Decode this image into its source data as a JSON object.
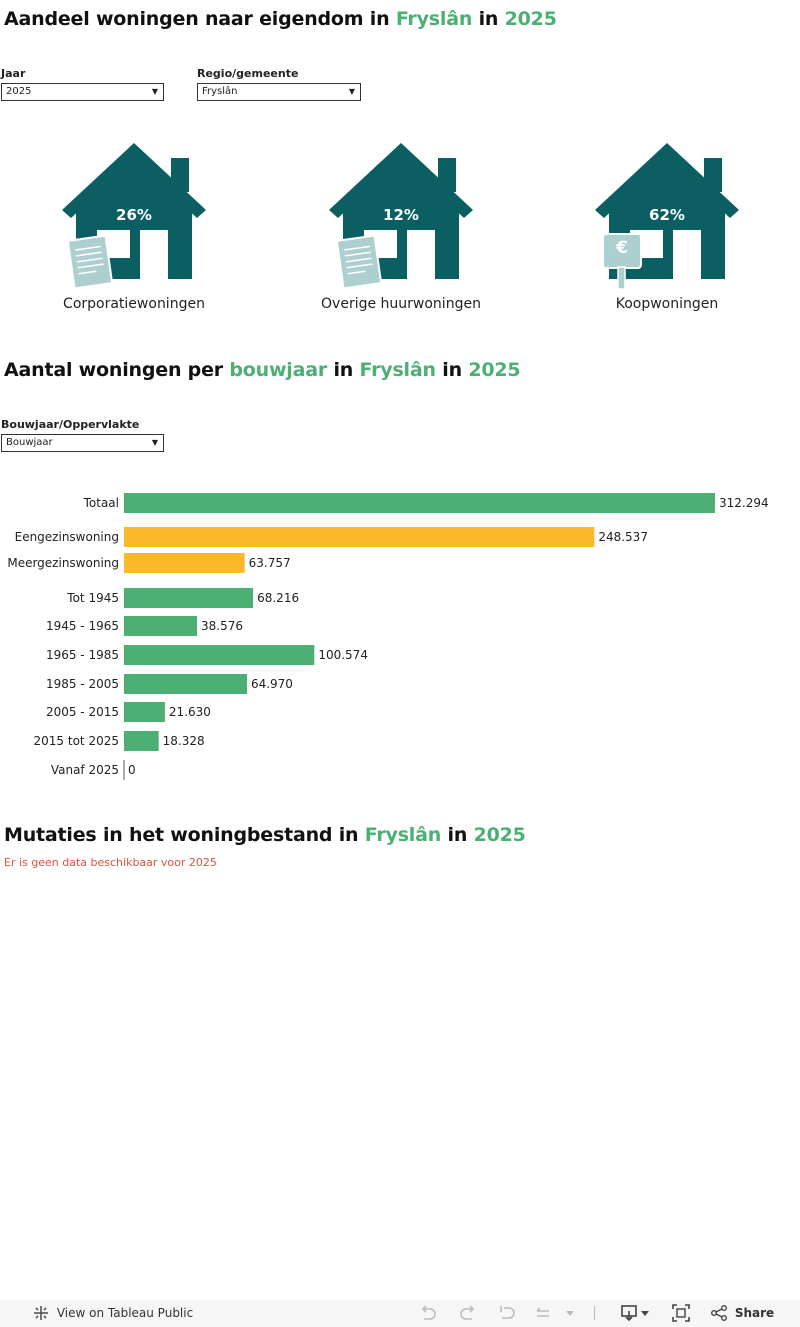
{
  "section1": {
    "title_prefix": "Aandeel woningen naar eigendom in",
    "title_region": "Fryslân",
    "title_in": "in",
    "title_year": "2025",
    "filter_year_label": "Jaar",
    "filter_year_value": "2025",
    "filter_region_label": "Regio/gemeente",
    "filter_region_value": "Fryslân",
    "houses": [
      {
        "pct": "26%",
        "label": "Corporatiewoningen",
        "sign": "document"
      },
      {
        "pct": "12%",
        "label": "Overige huurwoningen",
        "sign": "document"
      },
      {
        "pct": "62%",
        "label": "Koopwoningen",
        "sign": "euro"
      }
    ],
    "euro_symbol": "€"
  },
  "section2": {
    "title_prefix": "Aantal woningen per",
    "title_variable": "bouwjaar",
    "title_in": "in",
    "title_region": "Fryslân",
    "title_in2": "in",
    "title_year": "2025",
    "filter_label": "Bouwjaar/Oppervlakte",
    "filter_value": "Bouwjaar"
  },
  "chart_data": {
    "type": "bar",
    "orientation": "horizontal",
    "categories": [
      "Totaal",
      "Eengezinswoning",
      "Meergezinswoning",
      "Tot 1945",
      "1945 - 1965",
      "1965 - 1985",
      "1985 - 2005",
      "2005 - 2015",
      "2015 tot 2025",
      "Vanaf 2025"
    ],
    "values": [
      312294,
      248537,
      63757,
      68216,
      38576,
      100574,
      64970,
      21630,
      18328,
      0
    ],
    "value_labels": [
      "312.294",
      "248.537",
      "63.757",
      "68.216",
      "38.576",
      "100.574",
      "64.970",
      "21.630",
      "18.328",
      "0"
    ],
    "groups": [
      "total",
      "type",
      "type",
      "year",
      "year",
      "year",
      "year",
      "year",
      "year",
      "year"
    ],
    "colors": {
      "total": "#4caf73",
      "type": "#fbb829",
      "year": "#4caf73"
    },
    "xlim": [
      0,
      312294
    ],
    "title": "",
    "xlabel": "",
    "ylabel": ""
  },
  "section3": {
    "title_prefix": "Mutaties in het woningbestand in",
    "title_region": "Fryslân",
    "title_in": "in",
    "title_year": "2025",
    "nodata": "Er is geen data beschikbaar voor 2025"
  },
  "footer": {
    "view_label": "View on Tableau Public",
    "share_label": "Share"
  },
  "colors": {
    "accent": "#4caf73",
    "house": "#0b5f63",
    "sign": "#aecfd0",
    "bar_type": "#fbb829",
    "error": "#e0523c"
  }
}
